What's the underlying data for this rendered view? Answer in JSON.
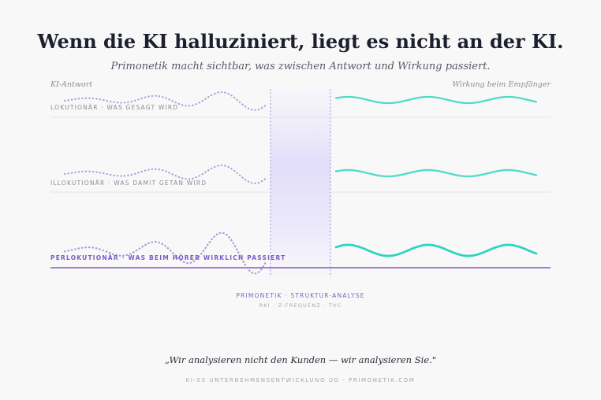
{
  "header": {
    "title": "Wenn die KI halluziniert, liegt es nicht an der KI.",
    "subtitle": "Primonetik macht sichtbar, was zwischen Antwort und Wirkung passiert."
  },
  "axis_labels": {
    "left": "KI-Antwort",
    "right": "Wirkung beim Empfänger"
  },
  "rows": [
    {
      "label": "LOKUTIONÄR · WAS GESAGT WIRD",
      "emphasis": false
    },
    {
      "label": "ILLOKUTIONÄR · WAS DAMIT GETAN WIRD",
      "emphasis": false
    },
    {
      "label": "PERLOKUTIONÄR · WAS BEIM HÖRER WIRKLICH PASSIERT",
      "emphasis": true
    }
  ],
  "center": {
    "title": "PRIMONETIK · STRUKTUR-ANALYSE",
    "subtitle": "RKI · Z-FREQUENZ · TVC"
  },
  "quote": "„Wir analysieren nicht den Kunden — wir analysieren Sie.\"",
  "footer": "KI-SS UNTERNEHMENSENTWICKLUNG UG · PRIMONETIK.COM",
  "colors": {
    "input_wave": "#9a8fd6",
    "output_wave": "#2ed4bf",
    "accent": "#7a5cc4",
    "band": "#e6e1fa"
  }
}
